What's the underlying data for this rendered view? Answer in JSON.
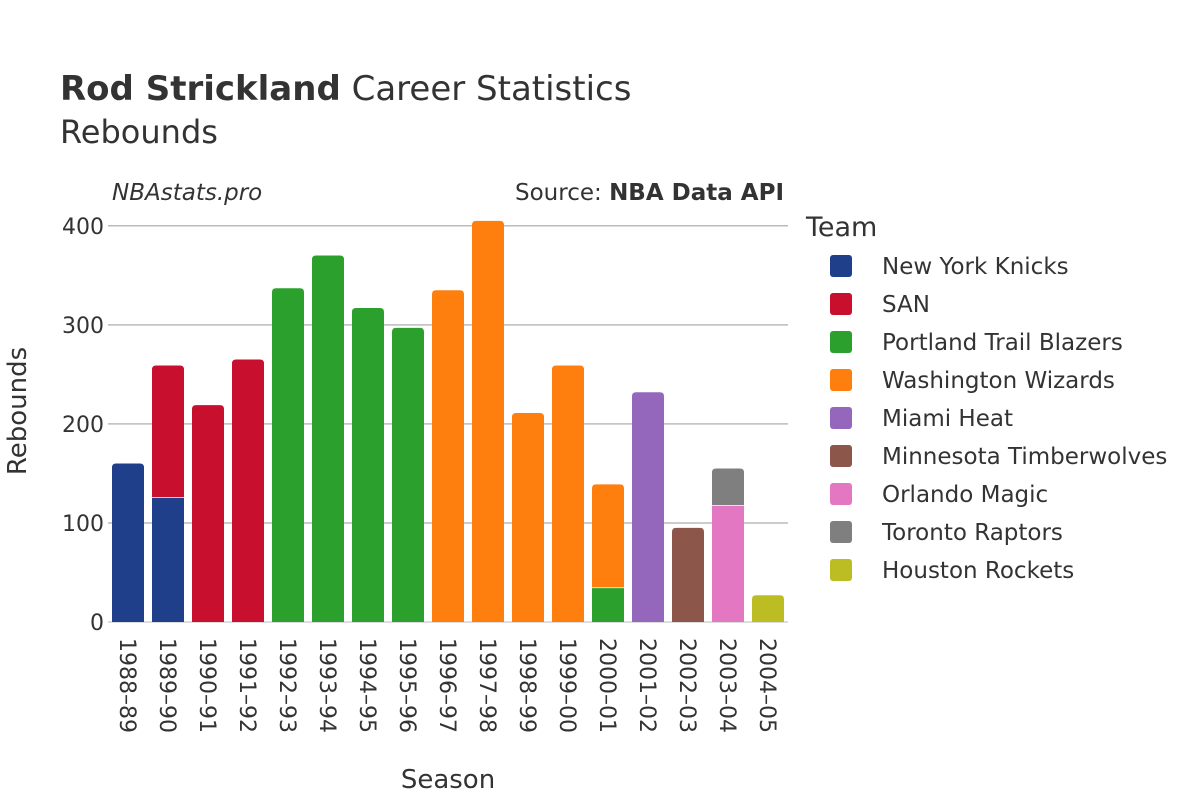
{
  "chart_data": {
    "type": "bar",
    "stacked": true,
    "title_bold": "Rod Strickland",
    "title_rest": " Career Statistics",
    "subtitle": "Rebounds",
    "watermark": "NBAstats.pro",
    "source_prefix": "Source: ",
    "source_name": "NBA Data API",
    "xlabel": "Season",
    "ylabel": "Rebounds",
    "ylim": [
      0,
      420
    ],
    "yticks": [
      0,
      100,
      200,
      300,
      400
    ],
    "grid": true,
    "legend_title": "Team",
    "legend_position": "right",
    "categories": [
      "1988–89",
      "1989–90",
      "1990–91",
      "1991–92",
      "1992–93",
      "1993–94",
      "1994–95",
      "1995–96",
      "1996–97",
      "1997–98",
      "1998–99",
      "1999–00",
      "2000–01",
      "2001–02",
      "2002–03",
      "2003–04",
      "2004–05"
    ],
    "series": [
      {
        "name": "New York Knicks",
        "color": "#1f3f8a",
        "values": [
          160,
          126,
          0,
          0,
          0,
          0,
          0,
          0,
          0,
          0,
          0,
          0,
          0,
          0,
          0,
          0,
          0
        ]
      },
      {
        "name": "SAN",
        "color": "#c8102e",
        "values": [
          0,
          133,
          219,
          265,
          0,
          0,
          0,
          0,
          0,
          0,
          0,
          0,
          0,
          0,
          0,
          0,
          0
        ]
      },
      {
        "name": "Portland Trail Blazers",
        "color": "#2ca02c",
        "values": [
          0,
          0,
          0,
          0,
          337,
          370,
          317,
          297,
          0,
          0,
          0,
          0,
          35,
          0,
          0,
          0,
          0
        ]
      },
      {
        "name": "Washington Wizards",
        "color": "#ff7f0e",
        "values": [
          0,
          0,
          0,
          0,
          0,
          0,
          0,
          0,
          335,
          405,
          211,
          259,
          104,
          0,
          0,
          0,
          0
        ]
      },
      {
        "name": "Miami Heat",
        "color": "#9467bd",
        "values": [
          0,
          0,
          0,
          0,
          0,
          0,
          0,
          0,
          0,
          0,
          0,
          0,
          0,
          232,
          0,
          0,
          0
        ]
      },
      {
        "name": "Minnesota Timberwolves",
        "color": "#8c564b",
        "values": [
          0,
          0,
          0,
          0,
          0,
          0,
          0,
          0,
          0,
          0,
          0,
          0,
          0,
          0,
          95,
          0,
          0
        ]
      },
      {
        "name": "Orlando Magic",
        "color": "#e377c2",
        "values": [
          0,
          0,
          0,
          0,
          0,
          0,
          0,
          0,
          0,
          0,
          0,
          0,
          0,
          0,
          0,
          118,
          0
        ]
      },
      {
        "name": "Toronto Raptors",
        "color": "#7f7f7f",
        "values": [
          0,
          0,
          0,
          0,
          0,
          0,
          0,
          0,
          0,
          0,
          0,
          0,
          0,
          0,
          0,
          37,
          0
        ]
      },
      {
        "name": "Houston Rockets",
        "color": "#bcbd22",
        "values": [
          0,
          0,
          0,
          0,
          0,
          0,
          0,
          0,
          0,
          0,
          0,
          0,
          0,
          0,
          0,
          0,
          27
        ]
      }
    ]
  }
}
